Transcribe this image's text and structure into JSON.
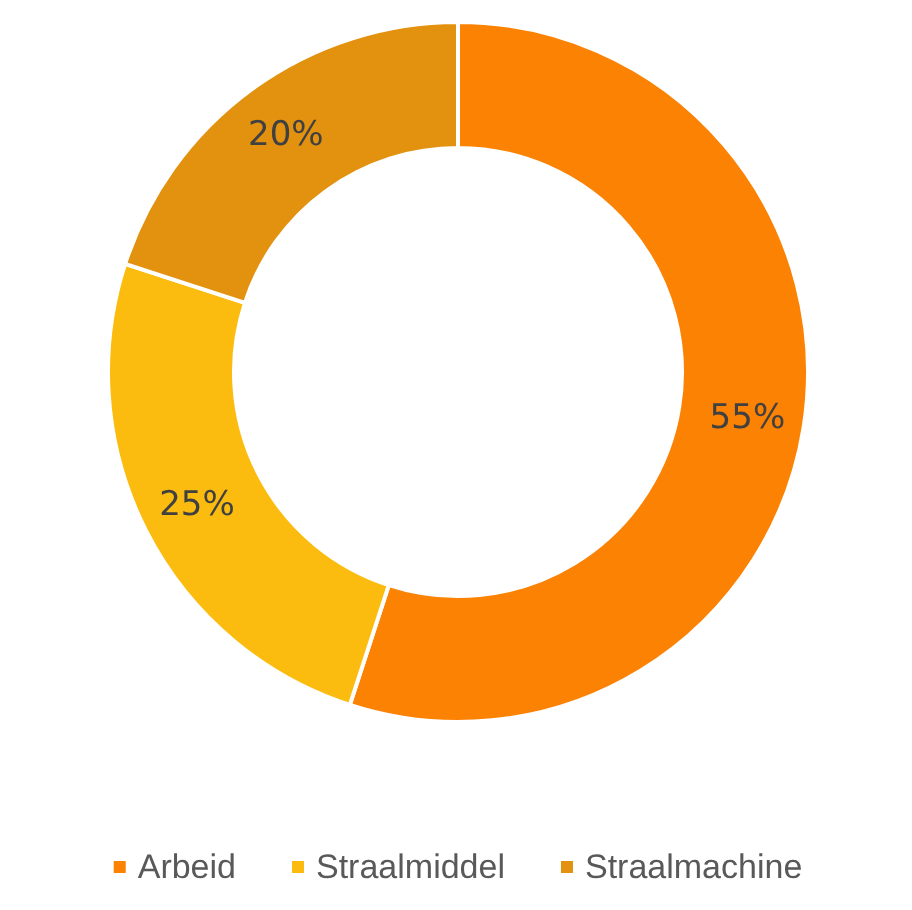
{
  "chart_data": {
    "type": "donut",
    "categories": [
      "Arbeid",
      "Straalmiddel",
      "Straalmachine"
    ],
    "values": [
      55,
      25,
      20
    ],
    "colors": [
      "#fb8203",
      "#fbbc0f",
      "#e2920f"
    ],
    "value_labels": [
      "55%",
      "25%",
      "20%"
    ],
    "legend": "bottom"
  }
}
